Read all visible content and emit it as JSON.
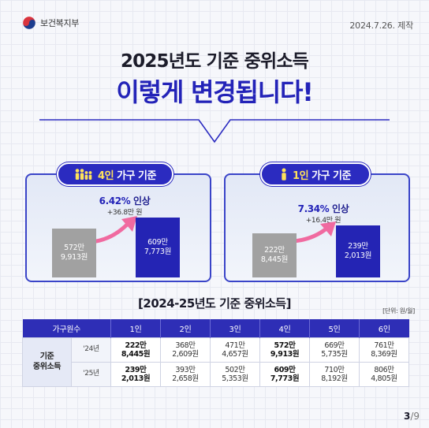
{
  "header": {
    "ministry": "보건복지부",
    "date": "2024.7.26. 제작"
  },
  "title": {
    "line1": "2025년도 기준 중위소득",
    "line2": "이렇게 변경됩니다!"
  },
  "panels": [
    {
      "label_highlight": "4인",
      "label_rest": " 가구 기준",
      "icon": "family-icon",
      "increase_pct": "6.42%",
      "increase_word": " 인상",
      "increase_amount": "+36.8만 원",
      "before": {
        "man": "572만",
        "won": "9,913원"
      },
      "after": {
        "man": "609만",
        "won": "7,773원"
      }
    },
    {
      "label_highlight": "1인",
      "label_rest": " 가구 기준",
      "icon": "person-icon",
      "increase_pct": "7.34%",
      "increase_word": " 인상",
      "increase_amount": "+16.4만 원",
      "before": {
        "man": "222만",
        "won": "8,445원"
      },
      "after": {
        "man": "239만",
        "won": "2,013원"
      }
    }
  ],
  "table": {
    "title": "[2024-25년도 기준 중위소득]",
    "unit": "[단위: 원/월]",
    "header_first": "가구원수",
    "columns": [
      "1인",
      "2인",
      "3인",
      "4인",
      "5인",
      "6인"
    ],
    "row_label_1": "기준",
    "row_label_2": "중위소득",
    "rows": [
      {
        "year": "'24년",
        "man": [
          "222만",
          "368만",
          "471만",
          "572만",
          "669만",
          "761만"
        ],
        "won": [
          "8,445원",
          "2,609원",
          "4,657원",
          "9,913원",
          "5,735원",
          "8,369원"
        ]
      },
      {
        "year": "'25년",
        "man": [
          "239만",
          "393만",
          "502만",
          "609만",
          "710만",
          "806만"
        ],
        "won": [
          "2,013원",
          "2,658원",
          "5,353원",
          "7,773원",
          "8,192원",
          "4,805원"
        ]
      }
    ]
  },
  "page": {
    "current": "3",
    "total": "/9"
  },
  "colors": {
    "primary": "#2b2bc0",
    "accent": "#ffe25a",
    "gray_bar": "#a1a1a1",
    "arrow": "#f06aa0"
  }
}
